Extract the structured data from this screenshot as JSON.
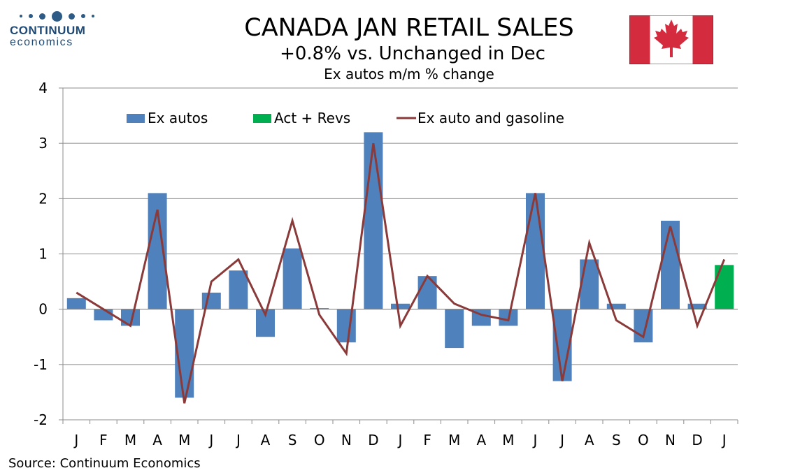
{
  "header": {
    "logo_name": "CONTINUUM",
    "logo_sub": "economics",
    "title": "CANADA JAN RETAIL SALES",
    "subtitle": "+0.8% vs. Unchanged in Dec",
    "subsubtitle": "Ex autos m/m % change"
  },
  "footer": {
    "source": "Source: Continuum Economics"
  },
  "colors": {
    "ex_autos": "#4f81bd",
    "act_revs": "#00b050",
    "line": "#8b3a3a",
    "flag_red": "#d52b3e"
  },
  "chart_data": {
    "type": "bar",
    "title": "CANADA JAN RETAIL SALES",
    "subtitle": "+0.8% vs. Unchanged in Dec",
    "ylabel": "Ex autos m/m % change",
    "xlabel": "",
    "ylim": [
      -2,
      4
    ],
    "yticks": [
      -2,
      -1,
      0,
      1,
      2,
      3,
      4
    ],
    "grid": true,
    "legend_position": "top",
    "categories": [
      "J",
      "F",
      "M",
      "A",
      "M",
      "J",
      "J",
      "A",
      "S",
      "O",
      "N",
      "D",
      "J",
      "F",
      "M",
      "A",
      "M",
      "J",
      "J",
      "A",
      "S",
      "O",
      "N",
      "D",
      "J"
    ],
    "series": [
      {
        "name": "Ex autos",
        "type": "bar",
        "values": [
          0.2,
          -0.2,
          -0.3,
          2.1,
          -1.6,
          0.3,
          0.7,
          -0.5,
          1.1,
          0.02,
          -0.6,
          3.2,
          0.1,
          0.6,
          -0.7,
          -0.3,
          -0.3,
          2.1,
          -1.3,
          0.9,
          0.1,
          -0.6,
          1.6,
          0.1,
          null
        ]
      },
      {
        "name": "Act + Revs",
        "type": "bar",
        "values": [
          null,
          null,
          null,
          null,
          null,
          null,
          null,
          null,
          null,
          null,
          null,
          null,
          null,
          null,
          null,
          null,
          null,
          null,
          null,
          null,
          null,
          null,
          null,
          0.02,
          0.8
        ]
      },
      {
        "name": "Ex auto and gasoline",
        "type": "line",
        "values": [
          0.3,
          0.0,
          -0.3,
          1.8,
          -1.7,
          0.5,
          0.9,
          -0.1,
          1.6,
          -0.1,
          -0.8,
          3.0,
          -0.3,
          0.6,
          0.1,
          -0.1,
          -0.2,
          2.1,
          -1.3,
          1.2,
          -0.2,
          -0.5,
          1.5,
          -0.3,
          0.9
        ]
      }
    ]
  }
}
